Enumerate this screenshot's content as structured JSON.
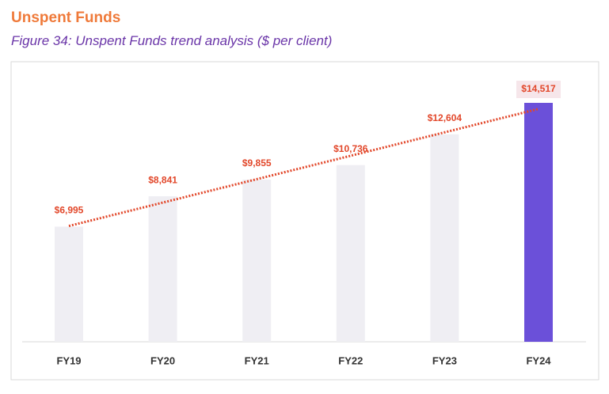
{
  "title": "Unspent Funds",
  "chart_data": {
    "type": "bar",
    "title": "Figure 34: Unspent Funds trend analysis ($ per client)",
    "categories": [
      "FY19",
      "FY20",
      "FY21",
      "FY22",
      "FY23",
      "FY24"
    ],
    "values": [
      6995,
      8841,
      9855,
      10736,
      12604,
      14517
    ],
    "value_labels": [
      "$6,995",
      "$8,841",
      "$9,855",
      "$10,736",
      "$12,604",
      "$14,517"
    ],
    "colors": [
      "#efeef3",
      "#efeef3",
      "#efeef3",
      "#efeef3",
      "#efeef3",
      "#6b50d9"
    ],
    "label_color": "#e2472a",
    "trendline": true,
    "trendline_color": "#e2472a"
  }
}
